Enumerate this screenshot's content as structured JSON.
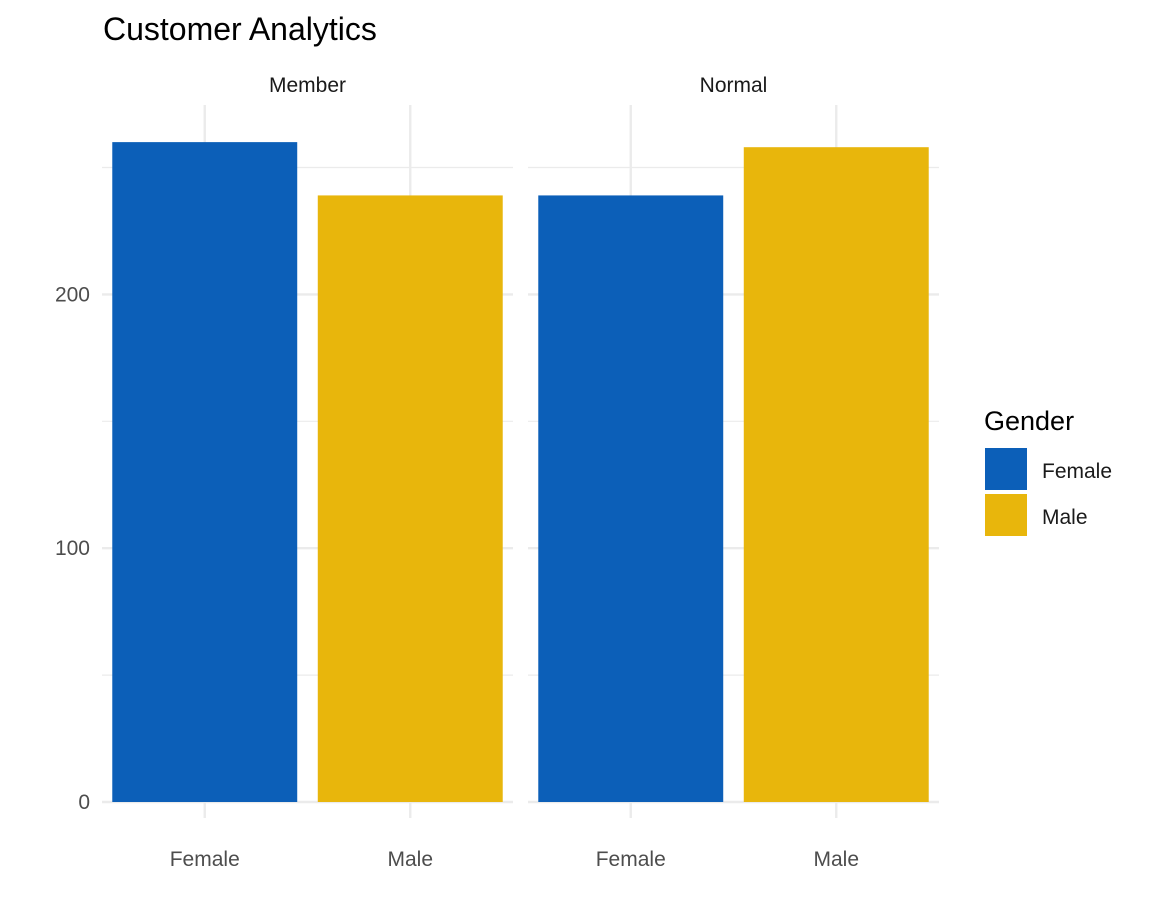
{
  "chart_data": {
    "type": "bar",
    "title": "Customer Analytics",
    "xlabel": "",
    "ylabel": "",
    "facets": [
      "Member",
      "Normal"
    ],
    "categories": [
      "Female",
      "Male"
    ],
    "values": {
      "Member": [
        260,
        239
      ],
      "Normal": [
        239,
        258
      ]
    },
    "fill_by": "Gender",
    "ylim": [
      0,
      260
    ],
    "y_ticks": [
      0,
      100,
      200
    ],
    "grid": true,
    "legend": {
      "title": "Gender",
      "position": "right",
      "entries": [
        {
          "label": "Female",
          "color": "#0C5FB8"
        },
        {
          "label": "Male",
          "color": "#E8B60C"
        }
      ]
    }
  }
}
